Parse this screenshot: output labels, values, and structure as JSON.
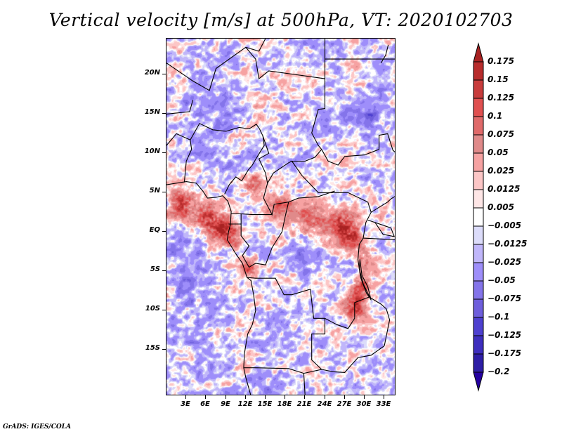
{
  "chart_data": {
    "type": "heatmap",
    "title": "Vertical velocity [m/s] at 500hPa, VT: 2020102703",
    "variable": "Vertical velocity",
    "units": "m/s",
    "level": "500hPa",
    "valid_time": "2020102703",
    "xlabel": "",
    "ylabel": "",
    "x_range_deg_east": [
      0,
      34.8
    ],
    "y_range_deg_north": [
      -20.9,
      24.6
    ],
    "x_ticks": [
      "3E",
      "6E",
      "9E",
      "12E",
      "15E",
      "18E",
      "21E",
      "24E",
      "27E",
      "30E",
      "33E"
    ],
    "x_tick_values": [
      3,
      6,
      9,
      12,
      15,
      18,
      21,
      24,
      27,
      30,
      33
    ],
    "y_ticks": [
      "20N",
      "15N",
      "10N",
      "5N",
      "EQ",
      "5S",
      "10S",
      "15S"
    ],
    "y_tick_values": [
      20,
      15,
      10,
      5,
      0,
      -5,
      -10,
      -15
    ],
    "colorbar": {
      "labels": [
        "0.175",
        "0.15",
        "0.125",
        "0.1",
        "0.075",
        "0.05",
        "0.025",
        "0.0125",
        "0.005",
        "−0.005",
        "−0.0125",
        "−0.025",
        "−0.05",
        "−0.075",
        "−0.1",
        "−0.125",
        "−0.175",
        "−0.2"
      ],
      "levels": [
        0.175,
        0.15,
        0.125,
        0.1,
        0.075,
        0.05,
        0.025,
        0.0125,
        0.005,
        -0.005,
        -0.0125,
        -0.025,
        -0.05,
        -0.075,
        -0.1,
        -0.125,
        -0.175,
        -0.2
      ],
      "colors": [
        "#a82222",
        "#b82c2c",
        "#c83c3c",
        "#e05050",
        "#e06a6a",
        "#e08a8a",
        "#f6a2a2",
        "#fcc6c6",
        "#fee6e6",
        "#ffffff",
        "#dcdcfa",
        "#c0b6fa",
        "#9e8efa",
        "#8474ea",
        "#6e5edc",
        "#4e40d0",
        "#3e2ebe",
        "#2e1ea6",
        "#2400a0"
      ],
      "extend": "both",
      "placement": "right"
    },
    "notes": "Filled-contour field over Central Africa with country borders and coastlines; positive (red) values concentrated along the Gulf of Guinea coast, Congo basin and East African rift lakes, negative (blue) values widespread over the Sahara and Atlantic."
  },
  "footer": "GrADS: IGES/COLA"
}
